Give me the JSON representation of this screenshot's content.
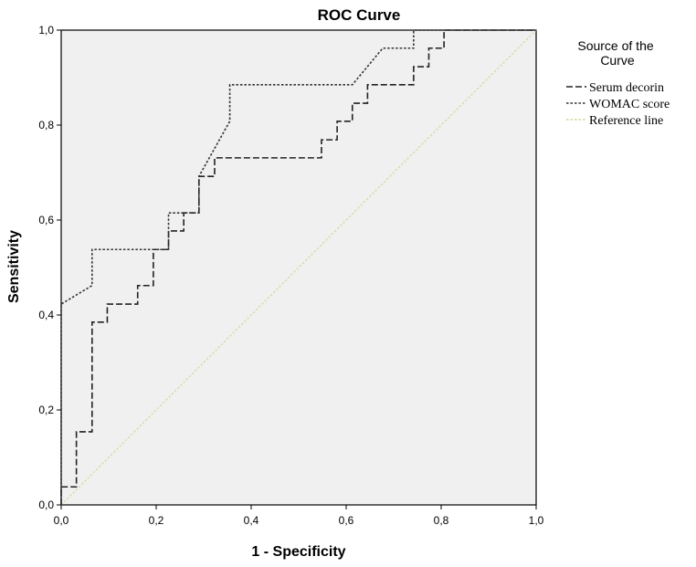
{
  "chart_data": {
    "type": "line",
    "title": "ROC Curve",
    "xlabel": "1 - Specificity",
    "ylabel": "Sensitivity",
    "xlim": [
      0,
      1
    ],
    "ylim": [
      0,
      1
    ],
    "xticks": [
      "0,0",
      "0,2",
      "0,4",
      "0,6",
      "0,8",
      "1,0"
    ],
    "yticks": [
      "0,0",
      "0,2",
      "0,4",
      "0,6",
      "0,8",
      "1,0"
    ],
    "grid": false,
    "background": "#f0f0f0",
    "legend": {
      "title_line1": "Source of the",
      "title_line2": "Curve",
      "position": "right"
    },
    "series": [
      {
        "name": "Serum decorin",
        "style": "dashed",
        "color": "#222222",
        "x": [
          0,
          0,
          0.032,
          0.032,
          0.065,
          0.065,
          0.097,
          0.097,
          0.161,
          0.161,
          0.194,
          0.194,
          0.226,
          0.226,
          0.258,
          0.258,
          0.29,
          0.29,
          0.323,
          0.323,
          0.548,
          0.548,
          0.581,
          0.581,
          0.613,
          0.613,
          0.645,
          0.645,
          0.742,
          0.742,
          0.774,
          0.774,
          0.806,
          0.806,
          1.0
        ],
        "y": [
          0,
          0.038,
          0.038,
          0.154,
          0.154,
          0.385,
          0.385,
          0.423,
          0.423,
          0.462,
          0.462,
          0.538,
          0.538,
          0.577,
          0.577,
          0.615,
          0.615,
          0.692,
          0.692,
          0.731,
          0.731,
          0.769,
          0.769,
          0.808,
          0.808,
          0.846,
          0.846,
          0.885,
          0.885,
          0.923,
          0.923,
          0.962,
          0.962,
          1.0,
          1.0
        ]
      },
      {
        "name": "WOMAC score",
        "style": "dotted",
        "color": "#333333",
        "x": [
          0,
          0,
          0.065,
          0.065,
          0.226,
          0.226,
          0.29,
          0.29,
          0.355,
          0.355,
          0.613,
          0.677,
          0.742,
          0.742,
          1.0
        ],
        "y": [
          0,
          0.423,
          0.462,
          0.538,
          0.538,
          0.615,
          0.615,
          0.692,
          0.808,
          0.885,
          0.885,
          0.962,
          0.962,
          1.0,
          1.0
        ]
      },
      {
        "name": "Reference line",
        "style": "dotted",
        "color": "#d6d69a",
        "x": [
          0,
          1
        ],
        "y": [
          0,
          1
        ]
      }
    ]
  }
}
